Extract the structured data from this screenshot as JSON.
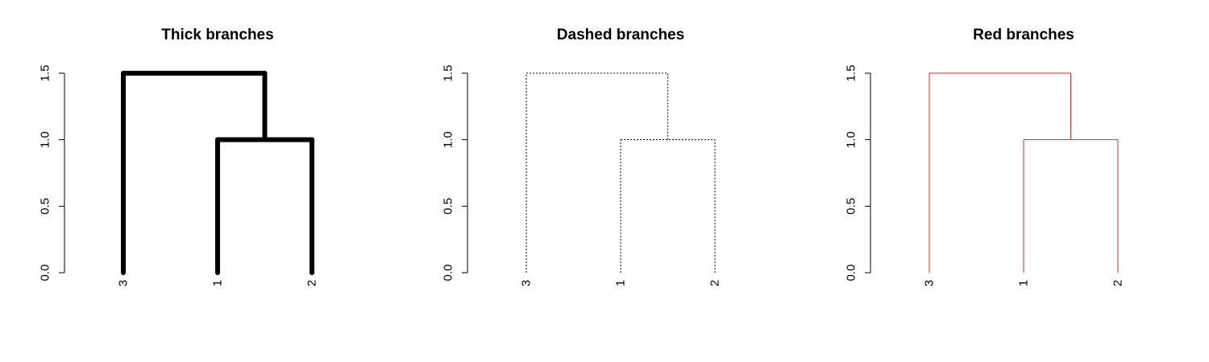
{
  "chart_data": [
    {
      "type": "dendrogram",
      "title": "Thick branches",
      "leaves": [
        "3",
        "1",
        "2"
      ],
      "merges": [
        {
          "members": [
            "1",
            "2"
          ],
          "height": 1.0
        },
        {
          "members": [
            "3",
            "1",
            "2"
          ],
          "height": 1.5
        }
      ],
      "y_ticks": [
        "0.0",
        "0.5",
        "1.0",
        "1.5"
      ],
      "ylim": [
        0,
        1.5
      ],
      "branch_style": {
        "color": "#000000",
        "line": "thick"
      }
    },
    {
      "type": "dendrogram",
      "title": "Dashed branches",
      "leaves": [
        "3",
        "1",
        "2"
      ],
      "merges": [
        {
          "members": [
            "1",
            "2"
          ],
          "height": 1.0
        },
        {
          "members": [
            "3",
            "1",
            "2"
          ],
          "height": 1.5
        }
      ],
      "y_ticks": [
        "0.0",
        "0.5",
        "1.0",
        "1.5"
      ],
      "ylim": [
        0,
        1.5
      ],
      "branch_style": {
        "color": "#000000",
        "line": "dotted"
      }
    },
    {
      "type": "dendrogram",
      "title": "Red branches",
      "leaves": [
        "3",
        "1",
        "2"
      ],
      "merges": [
        {
          "members": [
            "1",
            "2"
          ],
          "height": 1.0
        },
        {
          "members": [
            "3",
            "1",
            "2"
          ],
          "height": 1.5
        }
      ],
      "y_ticks": [
        "0.0",
        "0.5",
        "1.0",
        "1.5"
      ],
      "ylim": [
        0,
        1.5
      ],
      "branch_style": {
        "color": "#d42a2a",
        "line": "thin"
      }
    }
  ]
}
